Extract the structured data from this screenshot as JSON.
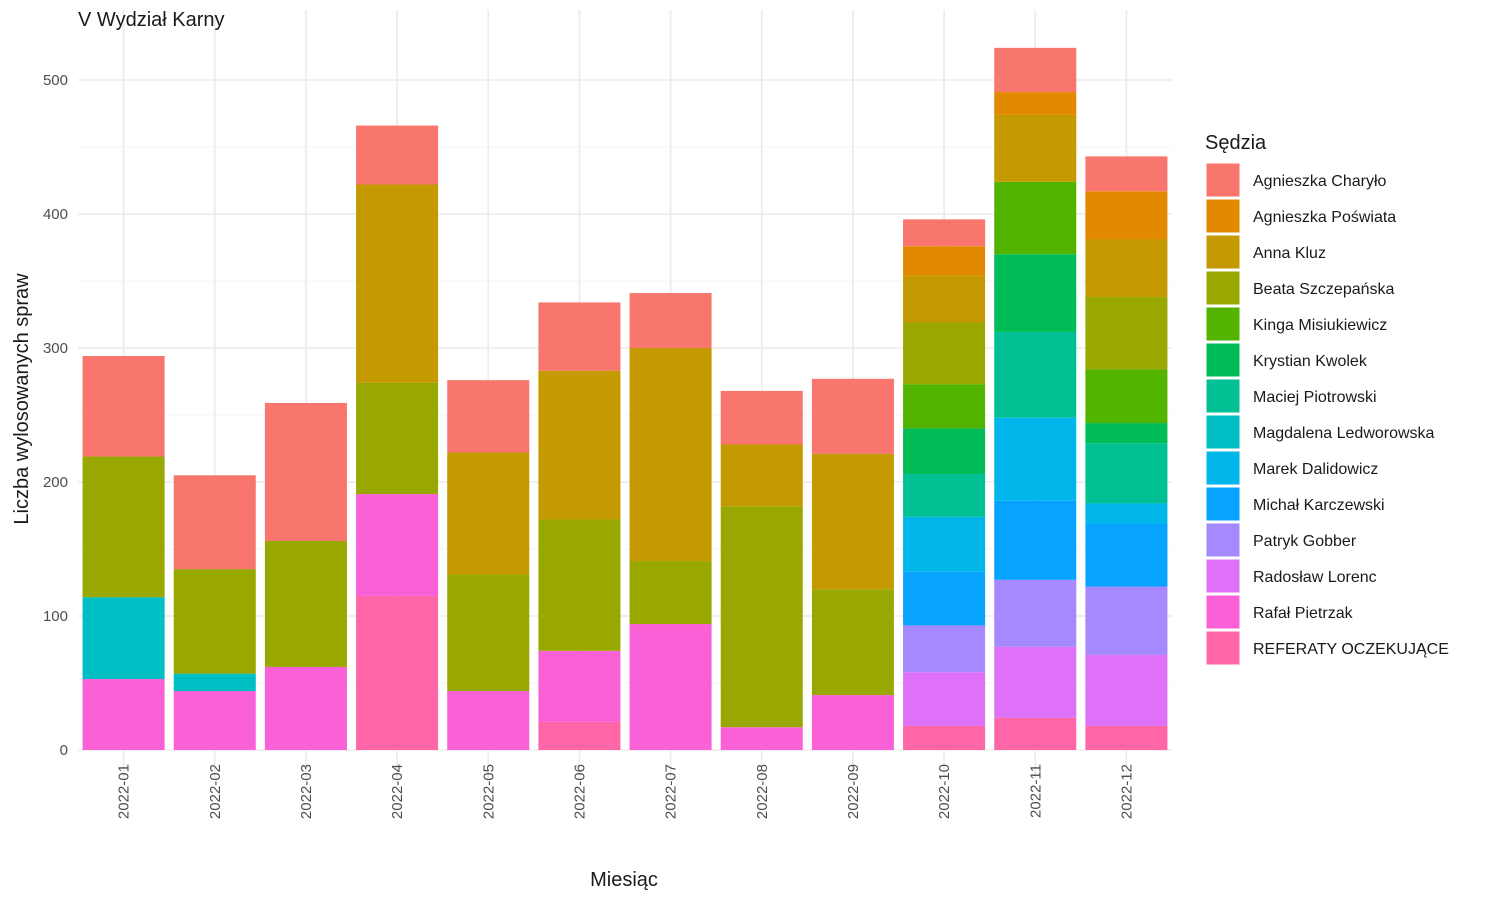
{
  "chart_data": {
    "type": "bar",
    "stacked": true,
    "title": "V Wydział Karny",
    "xlabel": "Miesiąc",
    "ylabel": "Liczba wylosowanych spraw",
    "ylim": [
      0,
      530
    ],
    "yticks": [
      0,
      100,
      200,
      300,
      400,
      500
    ],
    "grid": true,
    "legend_title": "Sędzia",
    "legend_position": "right",
    "categories": [
      "2022-01",
      "2022-02",
      "2022-03",
      "2022-04",
      "2022-05",
      "2022-06",
      "2022-07",
      "2022-08",
      "2022-09",
      "2022-10",
      "2022-11",
      "2022-12"
    ],
    "series": [
      {
        "name": "Agnieszka Charyło",
        "color": "#F8766D",
        "values": [
          75,
          70,
          103,
          44,
          54,
          51,
          41,
          40,
          56,
          20,
          33,
          26
        ]
      },
      {
        "name": "Agnieszka Poświata",
        "color": "#E38900",
        "values": [
          0,
          0,
          0,
          0,
          0,
          0,
          0,
          0,
          0,
          22,
          17,
          36
        ]
      },
      {
        "name": "Anna Kluz",
        "color": "#C49A00",
        "values": [
          0,
          0,
          0,
          148,
          91,
          111,
          159,
          46,
          101,
          35,
          50,
          43
        ]
      },
      {
        "name": "Beata Szczepańska",
        "color": "#99A800",
        "values": [
          105,
          78,
          94,
          83,
          87,
          98,
          47,
          165,
          79,
          46,
          0,
          54
        ]
      },
      {
        "name": "Kinga Misiukiewicz",
        "color": "#53B400",
        "values": [
          0,
          0,
          0,
          0,
          0,
          0,
          0,
          0,
          0,
          33,
          54,
          40
        ]
      },
      {
        "name": "Krystian Kwolek",
        "color": "#00BC56",
        "values": [
          0,
          0,
          0,
          0,
          0,
          0,
          0,
          0,
          0,
          34,
          58,
          15
        ]
      },
      {
        "name": "Maciej Piotrowski",
        "color": "#00C094",
        "values": [
          0,
          0,
          0,
          0,
          0,
          0,
          0,
          0,
          0,
          32,
          64,
          45
        ]
      },
      {
        "name": "Magdalena Ledworowska",
        "color": "#00BFC4",
        "values": [
          61,
          13,
          0,
          0,
          0,
          0,
          0,
          0,
          0,
          0,
          0,
          0
        ]
      },
      {
        "name": "Marek Dalidowicz",
        "color": "#00B6EB",
        "values": [
          0,
          0,
          0,
          0,
          0,
          0,
          0,
          0,
          0,
          41,
          62,
          15
        ]
      },
      {
        "name": "Michał Karczewski",
        "color": "#06A4FF",
        "values": [
          0,
          0,
          0,
          0,
          0,
          0,
          0,
          0,
          0,
          40,
          59,
          47
        ]
      },
      {
        "name": "Patryk Gobber",
        "color": "#A58AFF",
        "values": [
          0,
          0,
          0,
          0,
          0,
          0,
          0,
          0,
          0,
          35,
          50,
          51
        ]
      },
      {
        "name": "Radosław Lorenc",
        "color": "#DF70F8",
        "values": [
          0,
          0,
          0,
          0,
          0,
          0,
          0,
          0,
          0,
          40,
          53,
          53
        ]
      },
      {
        "name": "Rafał Pietrzak",
        "color": "#FB61D7",
        "values": [
          53,
          44,
          62,
          76,
          44,
          53,
          94,
          17,
          41,
          0,
          0,
          0
        ]
      },
      {
        "name": "REFERATY OCZEKUJĄCE",
        "color": "#FF66A8",
        "values": [
          0,
          0,
          0,
          115,
          0,
          21,
          0,
          0,
          0,
          18,
          24,
          18
        ]
      }
    ]
  }
}
